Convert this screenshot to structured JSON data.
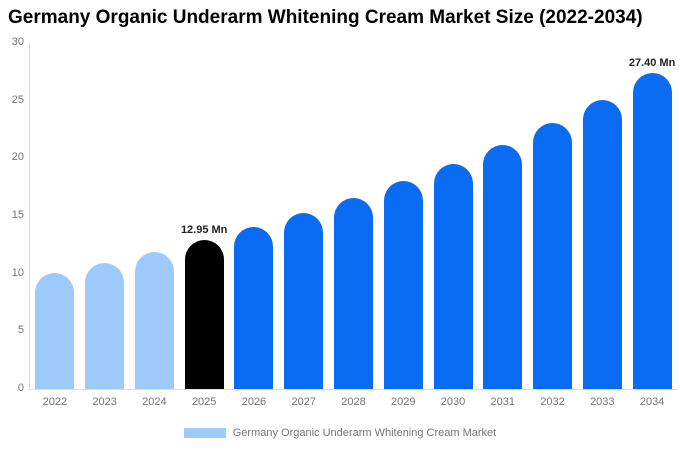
{
  "chart_data": {
    "type": "bar",
    "title": "Germany Organic Underarm Whitening Cream Market Size (2022-2034)",
    "unit": "Mn",
    "categories": [
      "2022",
      "2023",
      "2024",
      "2025",
      "2026",
      "2027",
      "2028",
      "2029",
      "2030",
      "2031",
      "2032",
      "2033",
      "2034"
    ],
    "values": [
      10.05,
      10.92,
      11.88,
      12.95,
      14.07,
      15.3,
      16.6,
      18.0,
      19.55,
      21.2,
      23.05,
      25.1,
      27.4
    ],
    "xlabel": "",
    "ylabel": "",
    "ylim": [
      0,
      30
    ],
    "yticks": [
      0,
      5,
      10,
      15,
      20,
      25,
      30
    ],
    "grid": "off",
    "legend": {
      "label": "Germany Organic Underarm Whitening Cream Market",
      "position": "bottom"
    },
    "annotations": [
      {
        "category": "2025",
        "text": "12.95 Mn"
      },
      {
        "category": "2034",
        "text": "27.40 Mn"
      }
    ],
    "segments": {
      "historical_years": [
        "2022",
        "2023",
        "2024"
      ],
      "base_year": "2025",
      "forecast_years": [
        "2026",
        "2027",
        "2028",
        "2029",
        "2030",
        "2031",
        "2032",
        "2033",
        "2034"
      ]
    },
    "colors": {
      "historical": "#9ec9fb",
      "base": "#000000",
      "forecast": "#0a6cf2",
      "axis_line": "#dedede",
      "tick_text": "#757575",
      "annotation_text": "#222222",
      "title_text": "#000000"
    }
  }
}
